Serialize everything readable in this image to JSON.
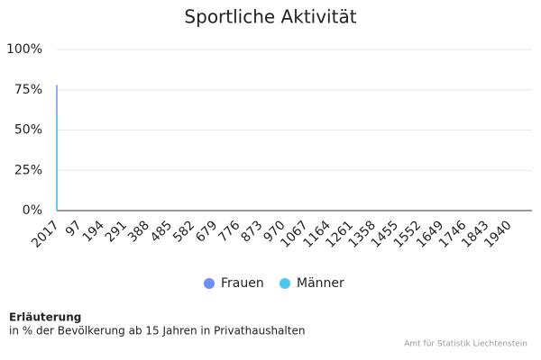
{
  "chart_data": {
    "type": "area",
    "title": "Sportliche Aktivität",
    "categories": [
      "2017",
      "97",
      "194",
      "291",
      "388",
      "485",
      "582",
      "679",
      "776",
      "873",
      "970",
      "1067",
      "1164",
      "1261",
      "1358",
      "1455",
      "1552",
      "1649",
      "1746",
      "1843",
      "1940"
    ],
    "series": [
      {
        "name": "Frauen",
        "color": "#6f8ef5",
        "values": [
          78,
          null,
          null,
          null,
          null,
          null,
          null,
          null,
          null,
          null,
          null,
          null,
          null,
          null,
          null,
          null,
          null,
          null,
          null,
          null,
          null
        ]
      },
      {
        "name": "Männer",
        "color": "#4fc7ec",
        "values": [
          60,
          null,
          null,
          null,
          null,
          null,
          null,
          null,
          null,
          null,
          null,
          null,
          null,
          null,
          null,
          null,
          null,
          null,
          null,
          null,
          null
        ]
      }
    ],
    "ylim": [
      0,
      100
    ],
    "yticks": [
      {
        "value": 0,
        "label": "0%"
      },
      {
        "value": 25,
        "label": "25%"
      },
      {
        "value": 50,
        "label": "50%"
      },
      {
        "value": 75,
        "label": "75%"
      },
      {
        "value": 100,
        "label": "100%"
      }
    ],
    "grid": true,
    "legend": "bottom",
    "note_title": "Erläuterung",
    "note": "in % der Bevölkerung ab 15 Jahren in Privathaushalten",
    "source": "Amt für Statistik Liechtenstein"
  }
}
